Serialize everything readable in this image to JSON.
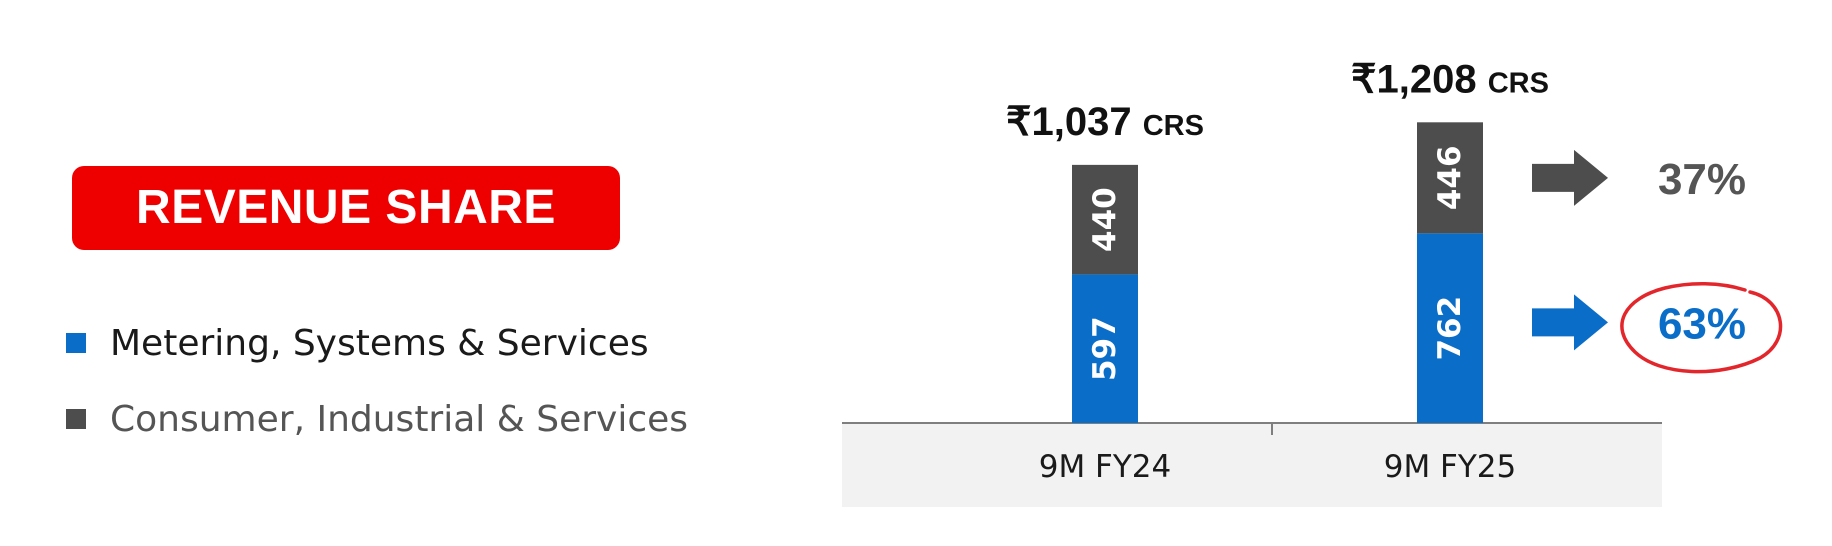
{
  "header": {
    "badge_label": "REVENUE SHARE"
  },
  "legend": [
    {
      "label": "Metering, Systems & Services",
      "color": "#0a6ec8"
    },
    {
      "label": "Consumer, Industrial & Services",
      "color": "#4d4d4d"
    }
  ],
  "chart_data": {
    "type": "bar",
    "stacked": true,
    "categories": [
      "9M FY24",
      "9M FY25"
    ],
    "series": [
      {
        "name": "Metering, Systems & Services",
        "values": [
          597,
          762
        ],
        "color": "#0a6ec8"
      },
      {
        "name": "Consumer, Industrial & Services",
        "values": [
          440,
          446
        ],
        "color": "#4d4d4d"
      }
    ],
    "totals": [
      "₹1,037 CRS",
      "₹1,208 CRS"
    ],
    "total_values": [
      1037,
      1208
    ],
    "share_annotations": [
      {
        "label": "37%",
        "series": "Consumer, Industrial & Services",
        "color": "#555555"
      },
      {
        "label": "63%",
        "series": "Metering, Systems & Services",
        "color": "#0a6ec8",
        "highlighted": true
      }
    ],
    "ylim": [
      0,
      1400
    ],
    "legend_position": "left"
  }
}
